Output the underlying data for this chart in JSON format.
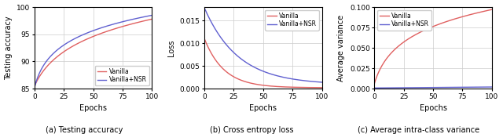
{
  "fig_width": 6.4,
  "fig_height": 1.71,
  "dpi": 100,
  "subplots": [
    {
      "title": "(a) Testing accuracy",
      "xlabel": "Epochs",
      "ylabel": "Testing accuracy",
      "xlim": [
        0,
        100
      ],
      "ylim": [
        85,
        100
      ],
      "yticks": [
        85,
        90,
        95,
        100
      ],
      "xticks": [
        0,
        25,
        50,
        75,
        100
      ],
      "legend_loc": "lower right",
      "vanilla_color": "#e06060",
      "nsr_color": "#6060d0",
      "vanilla_start": 85.5,
      "vanilla_end": 97.8,
      "nsr_start": 85.2,
      "nsr_end": 98.5
    },
    {
      "title": "(b) Cross entropy loss",
      "xlabel": "Epochs",
      "ylabel": "Loss",
      "xlim": [
        0,
        100
      ],
      "ylim": [
        0,
        0.018
      ],
      "yticks": [
        0.0,
        0.005,
        0.01,
        0.015
      ],
      "xticks": [
        0,
        25,
        50,
        75,
        100
      ],
      "legend_loc": "upper right",
      "vanilla_color": "#e06060",
      "nsr_color": "#6060d0",
      "vanilla_start": 0.011,
      "vanilla_end": 0.0002,
      "nsr_start": 0.0178,
      "nsr_end": 0.0009
    },
    {
      "title": "(c) Average intra-class variance",
      "xlabel": "Epochs",
      "ylabel": "Average variance",
      "xlim": [
        0,
        100
      ],
      "ylim": [
        0,
        0.1
      ],
      "yticks": [
        0.0,
        0.025,
        0.05,
        0.075,
        0.1
      ],
      "xticks": [
        0,
        25,
        50,
        75,
        100
      ],
      "legend_loc": "upper left",
      "vanilla_color": "#e06060",
      "nsr_color": "#6060d0",
      "vanilla_start": 0.006,
      "vanilla_end": 0.097,
      "nsr_start": 0.0008,
      "nsr_end": 0.002
    }
  ],
  "grid_color": "#cccccc",
  "linewidth": 1.0
}
